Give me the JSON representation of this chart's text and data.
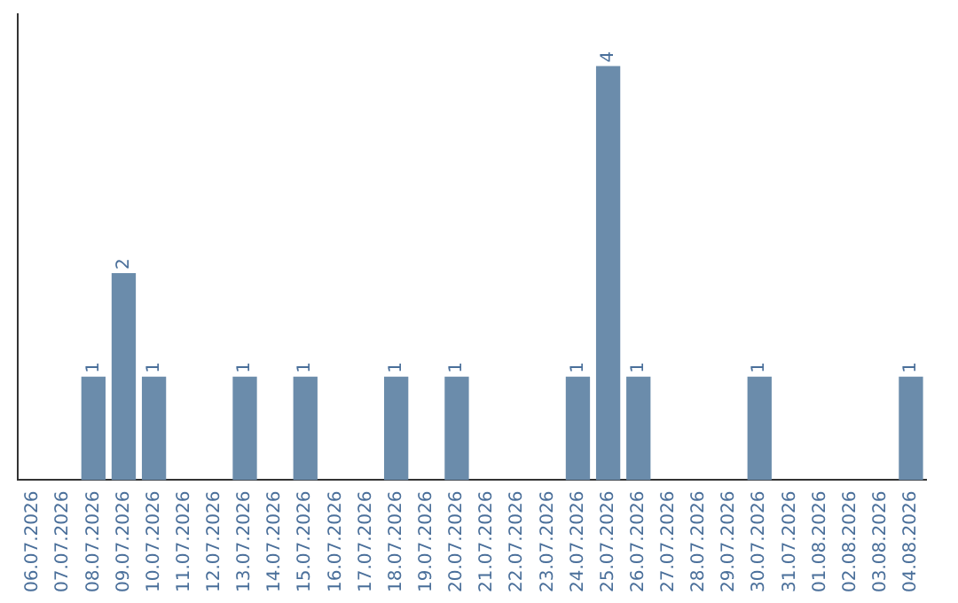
{
  "chart_data": {
    "type": "bar",
    "categories": [
      "06.07.2026",
      "07.07.2026",
      "08.07.2026",
      "09.07.2026",
      "10.07.2026",
      "11.07.2026",
      "12.07.2026",
      "13.07.2026",
      "14.07.2026",
      "15.07.2026",
      "16.07.2026",
      "17.07.2026",
      "18.07.2026",
      "19.07.2026",
      "20.07.2026",
      "21.07.2026",
      "22.07.2026",
      "23.07.2026",
      "24.07.2026",
      "25.07.2026",
      "26.07.2026",
      "27.07.2026",
      "28.07.2026",
      "29.07.2026",
      "30.07.2026",
      "31.07.2026",
      "01.08.2026",
      "02.08.2026",
      "03.08.2026",
      "04.08.2026"
    ],
    "values": [
      0,
      0,
      1,
      2,
      1,
      0,
      0,
      1,
      0,
      1,
      0,
      0,
      1,
      0,
      1,
      0,
      0,
      0,
      1,
      4,
      1,
      0,
      0,
      0,
      1,
      0,
      0,
      0,
      0,
      1
    ],
    "value_labels": [
      null,
      null,
      "1",
      "2",
      "1",
      null,
      null,
      "1",
      null,
      "1",
      null,
      null,
      "1",
      null,
      "1",
      null,
      null,
      null,
      "1",
      "4",
      "1",
      null,
      null,
      null,
      "1",
      null,
      null,
      null,
      null,
      "1"
    ],
    "color": "#6b8cab",
    "grid": false,
    "legend": false
  }
}
